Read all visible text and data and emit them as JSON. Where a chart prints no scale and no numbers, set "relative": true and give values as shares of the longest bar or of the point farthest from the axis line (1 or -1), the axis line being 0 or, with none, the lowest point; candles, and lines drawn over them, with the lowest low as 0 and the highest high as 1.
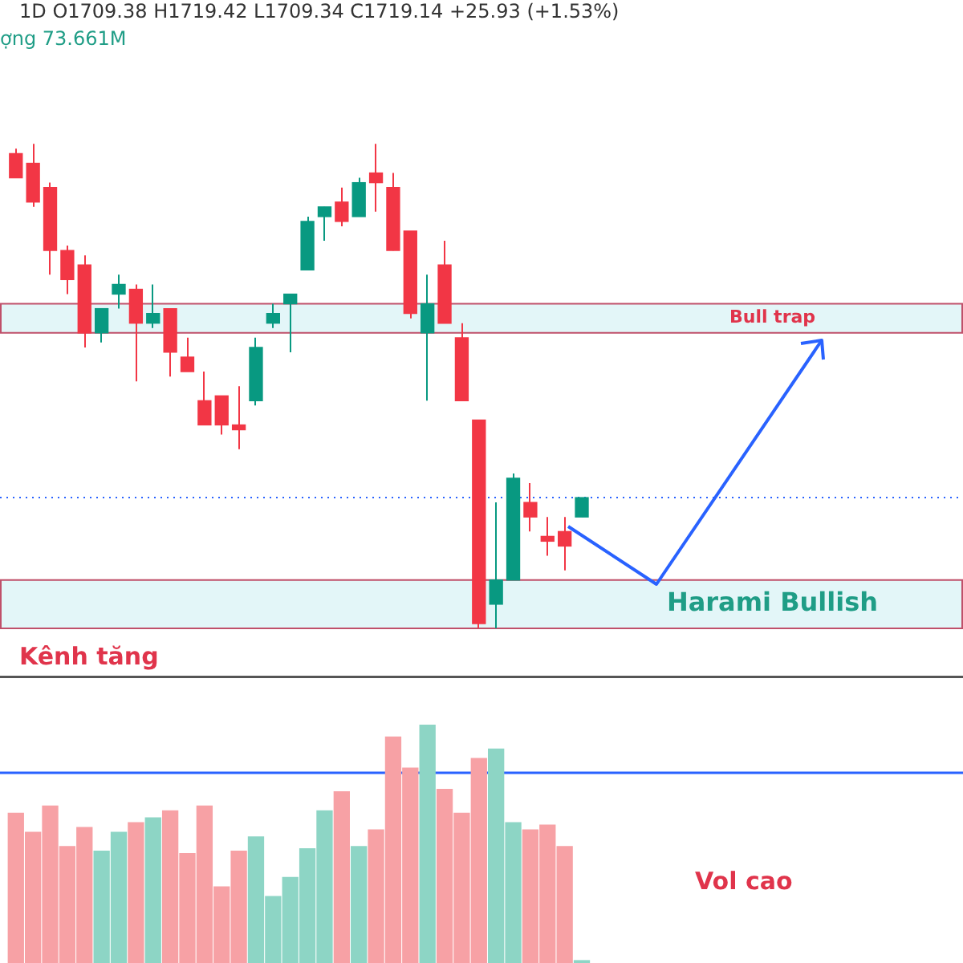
{
  "chart_data": [
    {
      "type": "candlestick",
      "relative": true,
      "tick_labels": false,
      "categories": [
        null,
        null,
        null,
        null,
        null,
        null,
        null,
        null,
        null,
        null,
        null,
        null,
        null,
        null,
        null,
        null,
        null,
        null,
        null,
        null,
        null,
        null,
        null,
        null,
        null,
        null,
        null,
        null,
        null,
        null,
        null,
        null,
        null,
        null
      ],
      "ohlc": [
        [
          0.98,
          0.99,
          0.93,
          0.93
        ],
        [
          0.96,
          1,
          0.87,
          0.88
        ],
        [
          0.91,
          0.92,
          0.73,
          0.78
        ],
        [
          0.78,
          0.79,
          0.69,
          0.72
        ],
        [
          0.75,
          0.77,
          0.58,
          0.61
        ],
        [
          0.61,
          0.66,
          0.59,
          0.66
        ],
        [
          0.69,
          0.73,
          0.66,
          0.71
        ],
        [
          0.7,
          0.71,
          0.51,
          0.63
        ],
        [
          0.63,
          0.71,
          0.62,
          0.65
        ],
        [
          0.66,
          0.66,
          0.52,
          0.57
        ],
        [
          0.56,
          0.6,
          0.53,
          0.53
        ],
        [
          0.47,
          0.53,
          0.42,
          0.42
        ],
        [
          0.48,
          0.48,
          0.4,
          0.42
        ],
        [
          0.42,
          0.5,
          0.37,
          0.41
        ],
        [
          0.47,
          0.6,
          0.46,
          0.58
        ],
        [
          0.63,
          0.67,
          0.62,
          0.65
        ],
        [
          0.67,
          0.69,
          0.57,
          0.69
        ],
        [
          0.74,
          0.85,
          0.74,
          0.84
        ],
        [
          0.85,
          0.87,
          0.8,
          0.87
        ],
        [
          0.88,
          0.91,
          0.83,
          0.84
        ],
        [
          0.85,
          0.93,
          0.85,
          0.92
        ],
        [
          0.94,
          1,
          0.86,
          0.92
        ],
        [
          0.91,
          0.94,
          0.78,
          0.78
        ],
        [
          0.82,
          0.82,
          0.64,
          0.65
        ],
        [
          0.61,
          0.73,
          0.47,
          0.67
        ],
        [
          0.75,
          0.8,
          0.63,
          0.63
        ],
        [
          0.6,
          0.63,
          0.47,
          0.47
        ],
        [
          0.43,
          0.43,
          0,
          0.01
        ],
        [
          0.05,
          0.26,
          0,
          0.1
        ],
        [
          0.1,
          0.32,
          0.1,
          0.31
        ],
        [
          0.26,
          0.3,
          0.2,
          0.23
        ],
        [
          0.19,
          0.23,
          0.15,
          0.18
        ],
        [
          0.2,
          0.23,
          0.12,
          0.17
        ],
        [
          0.23,
          0.27,
          0.23,
          0.27
        ]
      ],
      "colors": [
        "#f23645",
        "#f23645",
        "#f23645",
        "#f23645",
        "#f23645",
        "#089981",
        "#089981",
        "#f23645",
        "#089981",
        "#f23645",
        "#f23645",
        "#f23645",
        "#f23645",
        "#f23645",
        "#089981",
        "#089981",
        "#089981",
        "#089981",
        "#089981",
        "#f23645",
        "#089981",
        "#f23645",
        "#f23645",
        "#f23645",
        "#089981",
        "#f23645",
        "#f23645",
        "#f23645",
        "#089981",
        "#089981",
        "#f23645",
        "#f23645",
        "#f23645",
        "#089981"
      ],
      "bands": [
        {
          "axis": "y",
          "from": 0.61,
          "to": 0.67,
          "label": "Bull trap",
          "color": "#e3f6f8"
        },
        {
          "axis": "y",
          "from": 0,
          "to": 0.1,
          "label": "Harami Bullish",
          "color": "#e3f6f8"
        }
      ],
      "ref_lines": [
        {
          "axis": "y",
          "value": 0.27,
          "color": "#2962ff",
          "line_style": "dotted"
        },
        {
          "axis": "y",
          "value": -0.1,
          "label": "Kênh tăng",
          "color": "#555555",
          "line_style": "solid"
        }
      ],
      "annotations": [
        "1D O1709.38 H1719.42 L1709.34 C1719.14 +25.93 (+1.53%)",
        "ợng 73.661M"
      ]
    },
    {
      "type": "bar",
      "relative": true,
      "tick_labels": false,
      "categories": [
        null,
        null,
        null,
        null,
        null,
        null,
        null,
        null,
        null,
        null,
        null,
        null,
        null,
        null,
        null,
        null,
        null,
        null,
        null,
        null,
        null,
        null,
        null,
        null,
        null,
        null,
        null,
        null,
        null,
        null,
        null,
        null,
        null,
        null
      ],
      "values": [
        0.63,
        0.55,
        0.66,
        0.49,
        0.57,
        0.47,
        0.55,
        0.59,
        0.61,
        0.64,
        0.46,
        0.66,
        0.32,
        0.47,
        0.53,
        0.28,
        0.36,
        0.48,
        0.64,
        0.72,
        0.49,
        0.56,
        0.95,
        0.82,
        1,
        0.73,
        0.63,
        0.86,
        0.9,
        0.59,
        0.56,
        0.58,
        0.49,
        0.01
      ],
      "colors": [
        "#f7a1a5",
        "#f7a1a5",
        "#f7a1a5",
        "#f7a1a5",
        "#f7a1a5",
        "#8dd5c5",
        "#8dd5c5",
        "#f7a1a5",
        "#8dd5c5",
        "#f7a1a5",
        "#f7a1a5",
        "#f7a1a5",
        "#f7a1a5",
        "#f7a1a5",
        "#8dd5c5",
        "#8dd5c5",
        "#8dd5c5",
        "#8dd5c5",
        "#8dd5c5",
        "#f7a1a5",
        "#8dd5c5",
        "#f7a1a5",
        "#f7a1a5",
        "#f7a1a5",
        "#8dd5c5",
        "#f7a1a5",
        "#f7a1a5",
        "#f7a1a5",
        "#8dd5c5",
        "#8dd5c5",
        "#f7a1a5",
        "#f7a1a5",
        "#f7a1a5",
        "#8dd5c5"
      ],
      "ref_lines": [
        {
          "axis": "y",
          "value": 0.8,
          "color": "#2962ff",
          "line_style": "solid"
        }
      ],
      "annotations": [
        "Vol cao"
      ]
    }
  ]
}
